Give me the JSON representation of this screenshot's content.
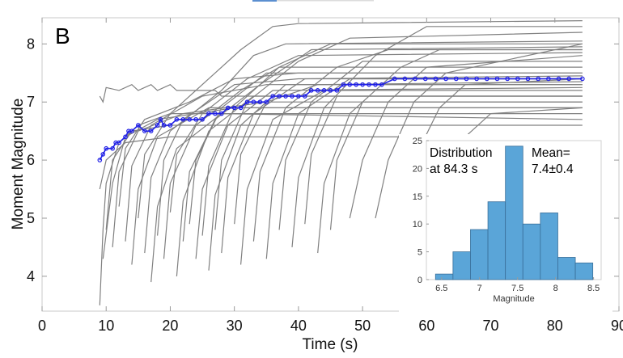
{
  "chart_data": [
    {
      "type": "line",
      "panel_label": "B",
      "xlabel": "Time (s)",
      "ylabel": "Moment Magnitude",
      "xlim": [
        0,
        90
      ],
      "ylim": [
        3.4,
        8.45
      ],
      "xticks": [
        0,
        10,
        20,
        30,
        40,
        50,
        60,
        70,
        80,
        90
      ],
      "yticks": [
        4,
        5,
        6,
        7,
        8
      ],
      "grid": false,
      "colors": {
        "individual": "#808080",
        "mean": "#1f1fe6"
      },
      "individual_series": [
        [
          [
            9,
            7.1
          ],
          [
            9.5,
            7.0
          ],
          [
            10,
            7.25
          ],
          [
            12,
            7.2
          ],
          [
            14,
            7.3
          ],
          [
            15,
            7.2
          ],
          [
            17,
            7.3
          ],
          [
            18,
            7.2
          ],
          [
            20,
            7.3
          ],
          [
            21,
            7.2
          ],
          [
            27,
            7.2
          ],
          [
            28,
            7.1
          ],
          [
            84.3,
            7.1
          ]
        ],
        [
          [
            9,
            3.5
          ],
          [
            9.5,
            4.8
          ],
          [
            10,
            5.6
          ],
          [
            12,
            6.3
          ],
          [
            15,
            6.6
          ],
          [
            20,
            6.8
          ],
          [
            84.3,
            6.8
          ]
        ],
        [
          [
            9.5,
            4.3
          ],
          [
            11,
            5.6
          ],
          [
            13,
            6.4
          ],
          [
            18,
            6.7
          ],
          [
            30,
            6.9
          ],
          [
            84.3,
            6.9
          ]
        ],
        [
          [
            10,
            4.8
          ],
          [
            11,
            6.0
          ],
          [
            14,
            6.5
          ],
          [
            20,
            6.6
          ],
          [
            84.3,
            6.6
          ]
        ],
        [
          [
            11,
            4.5
          ],
          [
            12,
            5.8
          ],
          [
            15,
            6.5
          ],
          [
            22,
            6.8
          ],
          [
            35,
            7.0
          ],
          [
            84.3,
            7.0
          ]
        ],
        [
          [
            12,
            5.2
          ],
          [
            13,
            6.2
          ],
          [
            16,
            6.7
          ],
          [
            23,
            7.0
          ],
          [
            30,
            7.4
          ],
          [
            40,
            7.5
          ],
          [
            84.3,
            7.5
          ]
        ],
        [
          [
            13,
            4.6
          ],
          [
            14,
            5.9
          ],
          [
            17,
            6.6
          ],
          [
            25,
            7.1
          ],
          [
            35,
            7.3
          ],
          [
            84.3,
            7.3
          ]
        ],
        [
          [
            14,
            4.2
          ],
          [
            15,
            5.5
          ],
          [
            18,
            6.4
          ],
          [
            26,
            6.9
          ],
          [
            84.3,
            6.9
          ]
        ],
        [
          [
            15,
            5.0
          ],
          [
            16,
            6.1
          ],
          [
            20,
            6.8
          ],
          [
            27,
            7.5
          ],
          [
            31,
            7.9
          ],
          [
            36,
            8.3
          ],
          [
            40,
            8.35
          ],
          [
            84.3,
            8.4
          ]
        ],
        [
          [
            16,
            4.4
          ],
          [
            17,
            5.7
          ],
          [
            20,
            6.5
          ],
          [
            28,
            7.2
          ],
          [
            33,
            7.8
          ],
          [
            38,
            8.0
          ],
          [
            84.3,
            8.05
          ]
        ],
        [
          [
            17,
            3.9
          ],
          [
            18,
            5.2
          ],
          [
            21,
            6.2
          ],
          [
            28,
            6.8
          ],
          [
            84.3,
            6.7
          ]
        ],
        [
          [
            18,
            4.7
          ],
          [
            19,
            6.0
          ],
          [
            22,
            6.7
          ],
          [
            30,
            7.3
          ],
          [
            40,
            7.4
          ],
          [
            84.3,
            7.4
          ]
        ],
        [
          [
            19,
            4.3
          ],
          [
            20,
            5.6
          ],
          [
            24,
            6.6
          ],
          [
            31,
            7.2
          ],
          [
            37,
            7.6
          ],
          [
            84.3,
            7.6
          ]
        ],
        [
          [
            20,
            5.1
          ],
          [
            21,
            6.1
          ],
          [
            25,
            6.8
          ],
          [
            32,
            7.4
          ],
          [
            40,
            7.8
          ],
          [
            84.3,
            7.85
          ]
        ],
        [
          [
            21,
            4.0
          ],
          [
            22,
            5.3
          ],
          [
            26,
            6.5
          ],
          [
            33,
            7.1
          ],
          [
            84.3,
            7.1
          ]
        ],
        [
          [
            22,
            4.6
          ],
          [
            23,
            5.8
          ],
          [
            27,
            6.7
          ],
          [
            34,
            7.3
          ],
          [
            42,
            7.9
          ],
          [
            84.3,
            7.95
          ]
        ],
        [
          [
            23,
            4.9
          ],
          [
            24,
            6.0
          ],
          [
            28,
            6.9
          ],
          [
            35,
            7.5
          ],
          [
            84.3,
            7.5
          ]
        ],
        [
          [
            24,
            4.3
          ],
          [
            25,
            5.5
          ],
          [
            29,
            6.6
          ],
          [
            36,
            7.2
          ],
          [
            84.3,
            7.25
          ]
        ],
        [
          [
            25,
            4.7
          ],
          [
            26,
            5.9
          ],
          [
            30,
            6.9
          ],
          [
            37,
            7.6
          ],
          [
            45,
            8.0
          ],
          [
            84.3,
            8.0
          ]
        ],
        [
          [
            26,
            4.1
          ],
          [
            27,
            5.4
          ],
          [
            31,
            6.6
          ],
          [
            38,
            7.3
          ],
          [
            84.3,
            7.3
          ]
        ],
        [
          [
            27,
            4.8
          ],
          [
            28,
            6.0
          ],
          [
            32,
            7.0
          ],
          [
            40,
            7.7
          ],
          [
            48,
            8.1
          ],
          [
            84.3,
            8.2
          ]
        ],
        [
          [
            28,
            4.4
          ],
          [
            29,
            5.7
          ],
          [
            33,
            6.8
          ],
          [
            41,
            7.4
          ],
          [
            84.3,
            7.45
          ]
        ],
        [
          [
            30,
            4.9
          ],
          [
            31,
            6.1
          ],
          [
            35,
            7.0
          ],
          [
            43,
            7.3
          ],
          [
            84.3,
            7.35
          ]
        ],
        [
          [
            31,
            4.2
          ],
          [
            32,
            5.5
          ],
          [
            36,
            6.7
          ],
          [
            44,
            7.2
          ],
          [
            84.3,
            7.2
          ]
        ],
        [
          [
            33,
            4.6
          ],
          [
            34,
            5.8
          ],
          [
            38,
            6.9
          ],
          [
            46,
            7.6
          ],
          [
            54,
            7.9
          ],
          [
            84.3,
            7.9
          ]
        ],
        [
          [
            35,
            4.3
          ],
          [
            36,
            5.6
          ],
          [
            40,
            6.8
          ],
          [
            48,
            7.4
          ],
          [
            84.3,
            7.4
          ]
        ],
        [
          [
            37,
            4.8
          ],
          [
            38,
            6.0
          ],
          [
            42,
            7.0
          ],
          [
            50,
            7.7
          ],
          [
            84.3,
            7.7
          ]
        ],
        [
          [
            39,
            4.5
          ],
          [
            40,
            5.7
          ],
          [
            44,
            6.9
          ],
          [
            52,
            7.8
          ],
          [
            60,
            8.3
          ],
          [
            84.3,
            8.3
          ]
        ],
        [
          [
            41,
            4.9
          ],
          [
            42,
            6.1
          ],
          [
            46,
            7.1
          ],
          [
            84.3,
            7.1
          ]
        ],
        [
          [
            43,
            4.4
          ],
          [
            44,
            5.6
          ],
          [
            48,
            6.8
          ],
          [
            56,
            7.6
          ],
          [
            62,
            7.9
          ],
          [
            84.3,
            7.9
          ]
        ],
        [
          [
            45,
            4.8
          ],
          [
            46,
            6.0
          ],
          [
            50,
            7.0
          ],
          [
            84.3,
            7.0
          ]
        ],
        [
          [
            48,
            5.0
          ],
          [
            50,
            6.0
          ],
          [
            54,
            7.0
          ],
          [
            60,
            7.6
          ],
          [
            84.3,
            7.8
          ]
        ],
        [
          [
            52,
            5.0
          ],
          [
            54,
            6.0
          ],
          [
            58,
            7.0
          ],
          [
            63,
            7.5
          ],
          [
            84.3,
            8.0
          ]
        ],
        [
          [
            56,
            5.3
          ],
          [
            58,
            6.0
          ],
          [
            62,
            6.9
          ],
          [
            66,
            7.3
          ],
          [
            84.3,
            7.4
          ]
        ],
        [
          [
            60,
            5.2
          ],
          [
            62,
            5.8
          ],
          [
            66,
            6.4
          ],
          [
            70,
            6.8
          ],
          [
            84.3,
            6.9
          ]
        ],
        [
          [
            9,
            5.5
          ],
          [
            10,
            6.0
          ],
          [
            13,
            6.3
          ],
          [
            20,
            6.4
          ],
          [
            84.3,
            6.4
          ]
        ]
      ],
      "mean_series": {
        "t": [
          9,
          9.5,
          10,
          11,
          11.5,
          12,
          13,
          13.5,
          14,
          15,
          16,
          17,
          18,
          18.5,
          19,
          20,
          21,
          22,
          23,
          24,
          25,
          26,
          27,
          28,
          29,
          30,
          31,
          32,
          33,
          34,
          35,
          36,
          37,
          38,
          39,
          40,
          41,
          42,
          43,
          44,
          45,
          46,
          47,
          48,
          49,
          50,
          51,
          52,
          53,
          55,
          56.6,
          58.2,
          59.8,
          61.4,
          63,
          64.6,
          66.2,
          67.8,
          69.4,
          71,
          72.6,
          74.2,
          75.8,
          77.4,
          79,
          80.6,
          82.2,
          84.3
        ],
        "m": [
          6.0,
          6.1,
          6.2,
          6.2,
          6.3,
          6.3,
          6.4,
          6.5,
          6.5,
          6.6,
          6.5,
          6.5,
          6.6,
          6.7,
          6.6,
          6.6,
          6.7,
          6.7,
          6.7,
          6.7,
          6.7,
          6.8,
          6.8,
          6.8,
          6.9,
          6.9,
          6.9,
          7.0,
          7.0,
          7.0,
          7.0,
          7.1,
          7.1,
          7.1,
          7.1,
          7.1,
          7.1,
          7.2,
          7.2,
          7.2,
          7.2,
          7.2,
          7.3,
          7.3,
          7.3,
          7.3,
          7.3,
          7.3,
          7.3,
          7.4,
          7.4,
          7.4,
          7.4,
          7.4,
          7.4,
          7.4,
          7.4,
          7.4,
          7.4,
          7.4,
          7.4,
          7.4,
          7.4,
          7.4,
          7.4,
          7.4,
          7.4,
          7.4
        ]
      }
    },
    {
      "type": "bar",
      "subtype": "histogram",
      "xlabel": "Magnitude",
      "xlim": [
        6.3,
        8.6
      ],
      "ylim": [
        0,
        25
      ],
      "xticks": [
        "6.5",
        "7",
        "7.5",
        "8",
        "8.5"
      ],
      "yticks": [
        "0",
        "5",
        "10",
        "15",
        "20",
        "25"
      ],
      "bin_edges": [
        6.42,
        6.65,
        6.88,
        7.11,
        7.34,
        7.57,
        7.8,
        8.03,
        8.26,
        8.49
      ],
      "counts": [
        1,
        5,
        9,
        14,
        24,
        10,
        12,
        4,
        3
      ],
      "color": "#5aa5d8",
      "annotation_left": [
        "Distribution",
        "at 84.3 s"
      ],
      "annotation_right": [
        "Mean=",
        "7.4±0.4"
      ]
    }
  ]
}
